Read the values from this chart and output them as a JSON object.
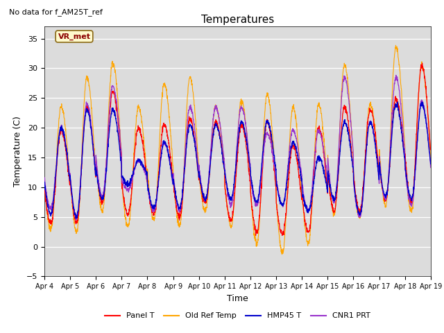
{
  "title": "Temperatures",
  "xlabel": "Time",
  "ylabel": "Temperature (C)",
  "top_left_text": "No data for f_AM25T_ref",
  "vr_met_label": "VR_met",
  "ylim": [
    -5,
    37
  ],
  "yticks": [
    -5,
    0,
    5,
    10,
    15,
    20,
    25,
    30,
    35
  ],
  "x_tick_labels": [
    "Apr 4",
    "Apr 5",
    "Apr 6",
    "Apr 7",
    "Apr 8",
    "Apr 9",
    "Apr 10",
    "Apr 11",
    "Apr 12",
    "Apr 13",
    "Apr 14",
    "Apr 15",
    "Apr 16",
    "Apr 17",
    "Apr 18",
    "Apr 19"
  ],
  "series_colors": {
    "Panel T": "#FF0000",
    "Old Ref Temp": "#FFA500",
    "HMP45 T": "#0000CC",
    "CNR1 PRT": "#9932CC"
  },
  "legend_labels": [
    "Panel T",
    "Old Ref Temp",
    "HMP45 T",
    "CNR1 PRT"
  ],
  "background_color": "#DCDCDC",
  "figure_bg": "#FFFFFF",
  "num_days": 15,
  "points_per_day": 144
}
